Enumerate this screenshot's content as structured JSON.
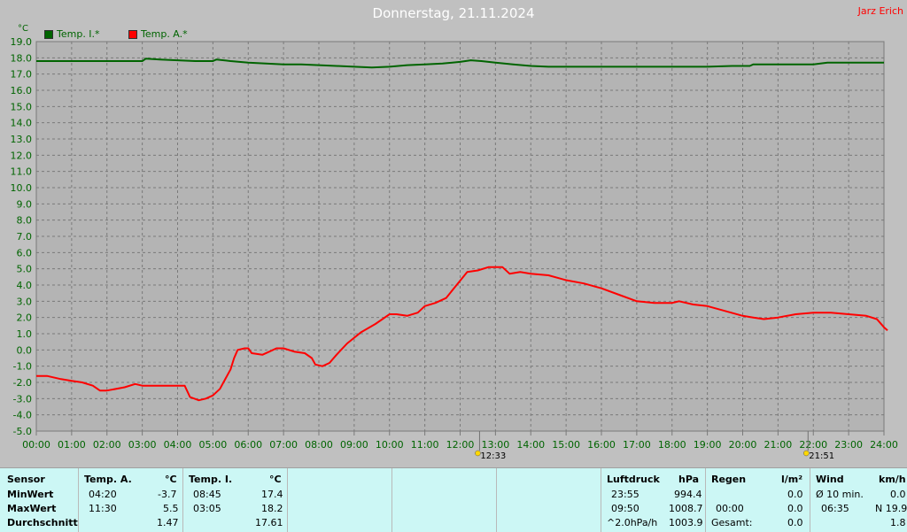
{
  "header": {
    "title": "Donnerstag, 21.11.2024",
    "author": "Jarz Erich",
    "unit": "°C"
  },
  "legend": [
    {
      "label": "Temp. I.*",
      "color": "#006400"
    },
    {
      "label": "Temp. A.*",
      "color": "#ff0000"
    }
  ],
  "chart_data": {
    "type": "line",
    "x_ticks": [
      "00:00",
      "01:00",
      "02:00",
      "03:00",
      "04:00",
      "05:00",
      "06:00",
      "07:00",
      "08:00",
      "09:00",
      "10:00",
      "11:00",
      "12:00",
      "13:00",
      "14:00",
      "15:00",
      "16:00",
      "17:00",
      "18:00",
      "19:00",
      "20:00",
      "21:00",
      "22:00",
      "23:00",
      "24:00"
    ],
    "y_ticks": [
      "19.0",
      "18.0",
      "17.0",
      "16.0",
      "15.0",
      "14.0",
      "13.0",
      "12.0",
      "11.0",
      "10.0",
      "9.0",
      "8.0",
      "7.0",
      "6.0",
      "5.0",
      "4.0",
      "3.0",
      "2.0",
      "1.0",
      "0.0",
      "-1.0",
      "-2.0",
      "-3.0",
      "-4.0",
      "-5.0"
    ],
    "ylim": [
      -5,
      19
    ],
    "xlim": [
      0,
      24
    ],
    "grid": true,
    "markers": [
      {
        "label": "12:33",
        "hour": 12.55
      },
      {
        "label": "21:51",
        "hour": 21.85
      }
    ],
    "series": [
      {
        "name": "Temp. I.*",
        "color": "#006400",
        "points": [
          [
            0,
            17.8
          ],
          [
            3,
            17.8
          ],
          [
            3.1,
            17.95
          ],
          [
            3.5,
            17.9
          ],
          [
            4,
            17.85
          ],
          [
            4.5,
            17.8
          ],
          [
            5,
            17.8
          ],
          [
            5.1,
            17.9
          ],
          [
            5.5,
            17.8
          ],
          [
            6,
            17.7
          ],
          [
            6.5,
            17.65
          ],
          [
            7,
            17.6
          ],
          [
            7.5,
            17.6
          ],
          [
            8,
            17.55
          ],
          [
            8.5,
            17.5
          ],
          [
            9,
            17.45
          ],
          [
            9.5,
            17.4
          ],
          [
            10,
            17.45
          ],
          [
            10.5,
            17.55
          ],
          [
            11,
            17.6
          ],
          [
            11.5,
            17.65
          ],
          [
            12,
            17.75
          ],
          [
            12.3,
            17.85
          ],
          [
            12.6,
            17.8
          ],
          [
            13,
            17.7
          ],
          [
            13.5,
            17.6
          ],
          [
            14,
            17.5
          ],
          [
            14.5,
            17.45
          ],
          [
            15,
            17.45
          ],
          [
            16,
            17.45
          ],
          [
            17,
            17.45
          ],
          [
            18,
            17.45
          ],
          [
            19,
            17.45
          ],
          [
            19.7,
            17.5
          ],
          [
            20.2,
            17.5
          ],
          [
            20.3,
            17.6
          ],
          [
            21,
            17.6
          ],
          [
            22,
            17.6
          ],
          [
            22.4,
            17.7
          ],
          [
            23,
            17.7
          ],
          [
            24,
            17.7
          ]
        ]
      },
      {
        "name": "Temp. A.*",
        "color": "#ff0000",
        "points": [
          [
            0,
            -1.6
          ],
          [
            0.3,
            -1.6
          ],
          [
            0.7,
            -1.8
          ],
          [
            1,
            -1.9
          ],
          [
            1.3,
            -2
          ],
          [
            1.6,
            -2.2
          ],
          [
            1.8,
            -2.5
          ],
          [
            2,
            -2.5
          ],
          [
            2.5,
            -2.3
          ],
          [
            2.8,
            -2.1
          ],
          [
            3,
            -2.2
          ],
          [
            3.5,
            -2.2
          ],
          [
            4,
            -2.2
          ],
          [
            4.2,
            -2.2
          ],
          [
            4.35,
            -2.9
          ],
          [
            4.6,
            -3.1
          ],
          [
            4.8,
            -3
          ],
          [
            5,
            -2.8
          ],
          [
            5.2,
            -2.4
          ],
          [
            5.5,
            -1.2
          ],
          [
            5.6,
            -0.5
          ],
          [
            5.7,
            0
          ],
          [
            5.9,
            0.1
          ],
          [
            6,
            0.1
          ],
          [
            6.1,
            -0.2
          ],
          [
            6.4,
            -0.3
          ],
          [
            6.6,
            -0.1
          ],
          [
            6.8,
            0.1
          ],
          [
            7,
            0.1
          ],
          [
            7.3,
            -0.1
          ],
          [
            7.6,
            -0.2
          ],
          [
            7.8,
            -0.5
          ],
          [
            7.9,
            -0.9
          ],
          [
            8.1,
            -1
          ],
          [
            8.3,
            -0.8
          ],
          [
            8.5,
            -0.3
          ],
          [
            8.8,
            0.4
          ],
          [
            9.2,
            1.1
          ],
          [
            9.6,
            1.6
          ],
          [
            10,
            2.2
          ],
          [
            10.2,
            2.2
          ],
          [
            10.5,
            2.1
          ],
          [
            10.8,
            2.3
          ],
          [
            11,
            2.7
          ],
          [
            11.3,
            2.9
          ],
          [
            11.6,
            3.2
          ],
          [
            11.9,
            4
          ],
          [
            12.2,
            4.8
          ],
          [
            12.5,
            4.9
          ],
          [
            12.8,
            5.1
          ],
          [
            13,
            5.1
          ],
          [
            13.2,
            5.1
          ],
          [
            13.4,
            4.7
          ],
          [
            13.7,
            4.8
          ],
          [
            14,
            4.7
          ],
          [
            14.5,
            4.6
          ],
          [
            15,
            4.3
          ],
          [
            15.5,
            4.1
          ],
          [
            16,
            3.8
          ],
          [
            16.5,
            3.4
          ],
          [
            17,
            3
          ],
          [
            17.5,
            2.9
          ],
          [
            18,
            2.9
          ],
          [
            18.2,
            3
          ],
          [
            18.6,
            2.8
          ],
          [
            19,
            2.7
          ],
          [
            19.5,
            2.4
          ],
          [
            20,
            2.1
          ],
          [
            20.3,
            2
          ],
          [
            20.6,
            1.9
          ],
          [
            21,
            2
          ],
          [
            21.5,
            2.2
          ],
          [
            22,
            2.3
          ],
          [
            22.2,
            2.3
          ],
          [
            22.5,
            2.3
          ],
          [
            23,
            2.2
          ],
          [
            23.5,
            2.1
          ],
          [
            23.8,
            1.9
          ],
          [
            24,
            1.4
          ],
          [
            24.1,
            1.2
          ]
        ]
      }
    ]
  },
  "stats": {
    "sensor": {
      "header": "Sensor",
      "rows": [
        "MinWert",
        "MaxWert",
        "Durchschnitt"
      ]
    },
    "temp_a": {
      "header": "Temp. A.",
      "unit": "°C",
      "min_time": "04:20",
      "min_val": "-3.7",
      "max_time": "11:30",
      "max_val": "5.5",
      "avg": "1.47"
    },
    "temp_i": {
      "header": "Temp. I.",
      "unit": "°C",
      "min_time": "08:45",
      "min_val": "17.4",
      "max_time": "03:05",
      "max_val": "18.2",
      "avg": "17.61"
    },
    "pressure": {
      "header": "Luftdruck",
      "unit": "hPa",
      "r1_time": "23:55",
      "r1_val": "994.4",
      "r2_time": "09:50",
      "r2_val": "1008.7",
      "r3_label": "^2.0hPa/h",
      "r3_val": "1003.9"
    },
    "rain": {
      "header": "Regen",
      "unit": "l/m²",
      "r2_time": "00:00",
      "r2_val": "0.0",
      "r3_label": "Gesamt:",
      "r3_val": "0.0",
      "r1_val": "0.0"
    },
    "wind": {
      "header": "Wind",
      "unit": "km/h",
      "r1_label": "Ø 10 min.",
      "r1_val": "0.0",
      "r2_time": "06:35",
      "r2_val": "N 19.9",
      "r3_val": "1.8"
    }
  }
}
